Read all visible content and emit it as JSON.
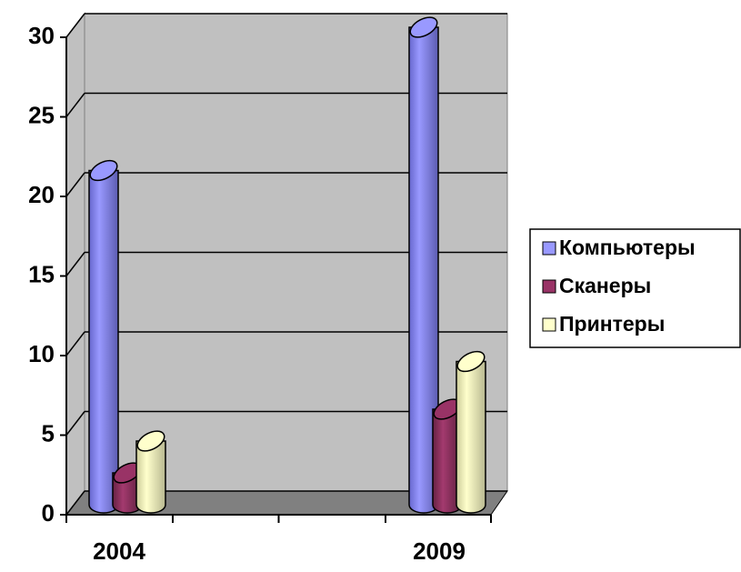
{
  "chart_data": {
    "type": "bar3d-cylinder",
    "categories": [
      "2004",
      "2009"
    ],
    "series": [
      {
        "name": "Компьютеры",
        "color": "#9999ff",
        "values": [
          21,
          30
        ]
      },
      {
        "name": "Сканеры",
        "color": "#993366",
        "values": [
          2,
          6
        ]
      },
      {
        "name": "Принтеры",
        "color": "#ffffcc",
        "values": [
          4,
          9
        ]
      }
    ],
    "ylim": [
      0,
      30
    ],
    "yticks": [
      0,
      5,
      10,
      15,
      20,
      25,
      30
    ],
    "grid": true,
    "legend": "right"
  }
}
